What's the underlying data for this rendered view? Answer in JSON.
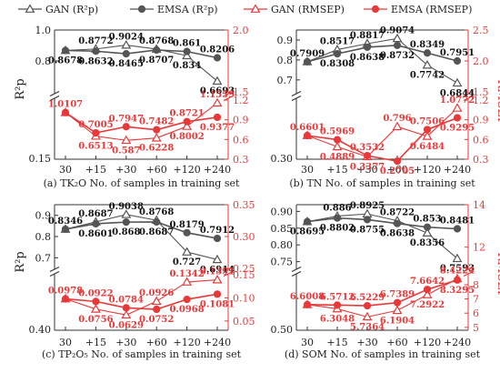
{
  "legend": {
    "items": [
      {
        "label": "GAN (R²p)",
        "color": "#555555",
        "marker": "triangle-open"
      },
      {
        "label": "EMSA (R²p)",
        "color": "#555555",
        "marker": "circle-filled"
      },
      {
        "label": "GAN (RMSEP)",
        "color": "#e8393a",
        "marker": "triangle-open"
      },
      {
        "label": "EMSA (RMSEP)",
        "color": "#e8393a",
        "marker": "circle-filled"
      }
    ]
  },
  "colors": {
    "r2": "#555555",
    "rmsep": "#e8393a",
    "axis_right": "#e8393a"
  },
  "chart_data": [
    {
      "type": "line",
      "caption": "(a) TK₂O No. of samples in training set",
      "x": [
        "30",
        "+15",
        "+30",
        "+60",
        "+120",
        "+240"
      ],
      "ylabel_left": "R²p",
      "ylabel_right": "",
      "left_upper_ticks": [
        "0.8",
        "1.0"
      ],
      "left_upper_range": [
        0.6,
        1.0
      ],
      "left_upper_tick_values": [
        0.8,
        1.0
      ],
      "left_lower_ticks": [
        "0.15"
      ],
      "right_ticks": [
        "0.3",
        "0.6",
        "0.9",
        "1.2",
        "1.5",
        "2.0"
      ],
      "right_lower_range": [
        0.3,
        1.2
      ],
      "right_upper_range": [
        1.5,
        2.0
      ],
      "series": [
        {
          "name": "GAN (R²p)",
          "kind": "r2",
          "marker": "triangle-open",
          "values": [
            0.8678,
            0.8772,
            0.9024,
            0.8768,
            0.834,
            0.6693
          ]
        },
        {
          "name": "EMSA (R²p)",
          "kind": "r2",
          "marker": "circle-filled",
          "values": [
            0.8678,
            0.8632,
            0.8465,
            0.8707,
            0.861,
            0.8206
          ]
        },
        {
          "name": "GAN (RMSEP)",
          "kind": "rmsep",
          "marker": "triangle-open",
          "values": [
            1.0107,
            0.6513,
            0.587,
            0.6228,
            0.8002,
            1.1559
          ]
        },
        {
          "name": "EMSA (RMSEP)",
          "kind": "rmsep",
          "marker": "circle-filled",
          "values": [
            1.0107,
            0.7005,
            0.7947,
            0.7482,
            0.8721,
            0.9377
          ]
        }
      ],
      "labels": [
        {
          "text": "0.8772",
          "i": 1,
          "s": 0,
          "pos": "above"
        },
        {
          "text": "0.9024",
          "i": 2,
          "s": 0,
          "pos": "above"
        },
        {
          "text": "0.8768",
          "i": 3,
          "s": 0,
          "pos": "above"
        },
        {
          "text": "0.861",
          "i": 4,
          "s": 1,
          "pos": "above"
        },
        {
          "text": "0.8206",
          "i": 5,
          "s": 1,
          "pos": "above"
        },
        {
          "text": "0.8678",
          "i": 0,
          "s": 1,
          "pos": "below"
        },
        {
          "text": "0.8632",
          "i": 1,
          "s": 1,
          "pos": "below"
        },
        {
          "text": "0.8465",
          "i": 2,
          "s": 1,
          "pos": "below"
        },
        {
          "text": "0.8707",
          "i": 3,
          "s": 1,
          "pos": "below"
        },
        {
          "text": "0.834",
          "i": 4,
          "s": 0,
          "pos": "below"
        },
        {
          "text": "0.6693",
          "i": 5,
          "s": 0,
          "pos": "below"
        },
        {
          "text": "1.0107",
          "i": 0,
          "s": 3,
          "pos": "above"
        },
        {
          "text": "0.7005",
          "i": 1,
          "s": 3,
          "pos": "above"
        },
        {
          "text": "0.7947",
          "i": 2,
          "s": 3,
          "pos": "above"
        },
        {
          "text": "0.7482",
          "i": 3,
          "s": 3,
          "pos": "above"
        },
        {
          "text": "0.8721",
          "i": 4,
          "s": 3,
          "pos": "above"
        },
        {
          "text": "1.1559",
          "i": 5,
          "s": 2,
          "pos": "above"
        },
        {
          "text": "0.6513",
          "i": 1,
          "s": 2,
          "pos": "below"
        },
        {
          "text": "0.587",
          "i": 2,
          "s": 2,
          "pos": "below"
        },
        {
          "text": "0.6228",
          "i": 3,
          "s": 2,
          "pos": "below"
        },
        {
          "text": "0.8002",
          "i": 4,
          "s": 2,
          "pos": "below"
        },
        {
          "text": "0.9377",
          "i": 5,
          "s": 3,
          "pos": "below"
        }
      ]
    },
    {
      "type": "line",
      "caption": "(b) TN No. of samples in training set",
      "x": [
        "30",
        "+15",
        "+30",
        "+60",
        "+120",
        "+240"
      ],
      "ylabel_left": "",
      "ylabel_right": "RMSEP",
      "left_upper_ticks": [
        "0.7",
        "0.8",
        "0.9"
      ],
      "left_upper_range": [
        0.64,
        0.95
      ],
      "left_upper_tick_values": [
        0.7,
        0.8,
        0.9
      ],
      "left_lower_ticks": [
        "0.30"
      ],
      "right_ticks": [
        "0.3",
        "0.6",
        "0.9",
        "1.2",
        "1.5",
        "2.0",
        "2.5"
      ],
      "right_lower_range": [
        0.3,
        1.2
      ],
      "right_upper_range": [
        1.5,
        2.5
      ],
      "series": [
        {
          "name": "GAN (R²p)",
          "kind": "r2",
          "marker": "triangle-open",
          "values": [
            0.7909,
            0.8517,
            0.8817,
            0.9074,
            0.7742,
            0.6844
          ]
        },
        {
          "name": "EMSA (R²p)",
          "kind": "r2",
          "marker": "circle-filled",
          "values": [
            0.7909,
            0.8308,
            0.8638,
            0.8732,
            0.8349,
            0.7951
          ]
        },
        {
          "name": "GAN (RMSEP)",
          "kind": "rmsep",
          "marker": "triangle-open",
          "values": [
            0.6601,
            0.4889,
            0.3377,
            0.796,
            0.6484,
            1.0772
          ]
        },
        {
          "name": "EMSA (RMSEP)",
          "kind": "rmsep",
          "marker": "circle-filled",
          "values": [
            0.6601,
            0.5969,
            0.3532,
            0.2705,
            0.7506,
            0.9295
          ]
        }
      ],
      "labels": [
        {
          "text": "0.7909",
          "i": 0,
          "s": 1,
          "pos": "above"
        },
        {
          "text": "0.8517",
          "i": 1,
          "s": 0,
          "pos": "above"
        },
        {
          "text": "0.8817",
          "i": 2,
          "s": 0,
          "pos": "above"
        },
        {
          "text": "0.9074",
          "i": 3,
          "s": 0,
          "pos": "above"
        },
        {
          "text": "0.8349",
          "i": 4,
          "s": 1,
          "pos": "above"
        },
        {
          "text": "0.7951",
          "i": 5,
          "s": 1,
          "pos": "above"
        },
        {
          "text": "0.8308",
          "i": 1,
          "s": 1,
          "pos": "below"
        },
        {
          "text": "0.8638",
          "i": 2,
          "s": 1,
          "pos": "below"
        },
        {
          "text": "0.8732",
          "i": 3,
          "s": 1,
          "pos": "below"
        },
        {
          "text": "0.7742",
          "i": 4,
          "s": 0,
          "pos": "below"
        },
        {
          "text": "0.6844",
          "i": 5,
          "s": 0,
          "pos": "below"
        },
        {
          "text": "0.6601",
          "i": 0,
          "s": 3,
          "pos": "above"
        },
        {
          "text": "0.5969",
          "i": 1,
          "s": 3,
          "pos": "above"
        },
        {
          "text": "0.3532",
          "i": 2,
          "s": 3,
          "pos": "above"
        },
        {
          "text": "0.796",
          "i": 3,
          "s": 2,
          "pos": "above"
        },
        {
          "text": "0.7506",
          "i": 4,
          "s": 3,
          "pos": "above"
        },
        {
          "text": "1.0772",
          "i": 5,
          "s": 2,
          "pos": "above"
        },
        {
          "text": "0.4889",
          "i": 1,
          "s": 2,
          "pos": "below"
        },
        {
          "text": "0.3377",
          "i": 2,
          "s": 2,
          "pos": "below"
        },
        {
          "text": "0.2705",
          "i": 3,
          "s": 3,
          "pos": "below"
        },
        {
          "text": "0.6484",
          "i": 4,
          "s": 2,
          "pos": "below"
        },
        {
          "text": "0.9295",
          "i": 5,
          "s": 3,
          "pos": "below"
        }
      ]
    },
    {
      "type": "line",
      "caption": "(c) TP₂O₅ No. of samples in training set",
      "x": [
        "30",
        "+15",
        "+30",
        "+60",
        "+120",
        "+240"
      ],
      "ylabel_left": "R²p",
      "ylabel_right": "",
      "left_upper_ticks": [
        "0.7",
        "0.8",
        "0.9"
      ],
      "left_upper_range": [
        0.65,
        0.95
      ],
      "left_upper_tick_values": [
        0.7,
        0.8,
        0.9
      ],
      "left_lower_ticks": [
        "0.40"
      ],
      "right_ticks": [
        "0.05",
        "0.10",
        "0.15",
        "0.25",
        "0.30",
        "0.35"
      ],
      "right_lower_range": [
        0.03,
        0.15
      ],
      "right_upper_range": [
        0.25,
        0.35
      ],
      "series": [
        {
          "name": "GAN (R²p)",
          "kind": "r2",
          "marker": "triangle-open",
          "values": [
            0.8346,
            0.8687,
            0.9038,
            0.8768,
            0.727,
            0.6914
          ]
        },
        {
          "name": "EMSA (R²p)",
          "kind": "r2",
          "marker": "circle-filled",
          "values": [
            0.8346,
            0.8601,
            0.868,
            0.8687,
            0.8179,
            0.7912
          ]
        },
        {
          "name": "GAN (RMSEP)",
          "kind": "rmsep",
          "marker": "triangle-open",
          "values": [
            0.0978,
            0.0756,
            0.0629,
            0.0926,
            0.1342,
            0.1391
          ]
        },
        {
          "name": "EMSA (RMSEP)",
          "kind": "rmsep",
          "marker": "circle-filled",
          "values": [
            0.0978,
            0.0922,
            0.0784,
            0.0752,
            0.0968,
            0.1081
          ]
        }
      ],
      "labels": [
        {
          "text": "0.8346",
          "i": 0,
          "s": 0,
          "pos": "above"
        },
        {
          "text": "0.8687",
          "i": 1,
          "s": 0,
          "pos": "above"
        },
        {
          "text": "0.9038",
          "i": 2,
          "s": 0,
          "pos": "above"
        },
        {
          "text": "0.8768",
          "i": 3,
          "s": 0,
          "pos": "above"
        },
        {
          "text": "0.8179",
          "i": 4,
          "s": 1,
          "pos": "above"
        },
        {
          "text": "0.7912",
          "i": 5,
          "s": 1,
          "pos": "above"
        },
        {
          "text": "0.8601",
          "i": 1,
          "s": 1,
          "pos": "below"
        },
        {
          "text": "0.868",
          "i": 2,
          "s": 1,
          "pos": "below"
        },
        {
          "text": "0.8687",
          "i": 3,
          "s": 1,
          "pos": "below"
        },
        {
          "text": "0.727",
          "i": 4,
          "s": 0,
          "pos": "below"
        },
        {
          "text": "0.6914",
          "i": 5,
          "s": 0,
          "pos": "below"
        },
        {
          "text": "0.0978",
          "i": 0,
          "s": 3,
          "pos": "above"
        },
        {
          "text": "0.0922",
          "i": 1,
          "s": 3,
          "pos": "above"
        },
        {
          "text": "0.0784",
          "i": 2,
          "s": 3,
          "pos": "above"
        },
        {
          "text": "0.0926",
          "i": 3,
          "s": 2,
          "pos": "above"
        },
        {
          "text": "0.1342",
          "i": 4,
          "s": 2,
          "pos": "above"
        },
        {
          "text": "0.1391",
          "i": 5,
          "s": 2,
          "pos": "above"
        },
        {
          "text": "0.0756",
          "i": 1,
          "s": 2,
          "pos": "below"
        },
        {
          "text": "0.0629",
          "i": 2,
          "s": 2,
          "pos": "below"
        },
        {
          "text": "0.0752",
          "i": 3,
          "s": 3,
          "pos": "below"
        },
        {
          "text": "0.0968",
          "i": 4,
          "s": 3,
          "pos": "below"
        },
        {
          "text": "0.1081",
          "i": 5,
          "s": 3,
          "pos": "below"
        }
      ]
    },
    {
      "type": "line",
      "caption": "(d) SOM No. of samples in training set",
      "x": [
        "30",
        "+15",
        "+30",
        "+60",
        "+120",
        "+240"
      ],
      "ylabel_left": "",
      "ylabel_right": "RMSEP",
      "left_upper_ticks": [
        "0.75",
        "0.80",
        "0.85",
        "0.90"
      ],
      "left_upper_range": [
        0.73,
        0.92
      ],
      "left_upper_tick_values": [
        0.75,
        0.8,
        0.85,
        0.9
      ],
      "left_lower_ticks": [
        "0.50"
      ],
      "right_ticks": [
        "5",
        "6",
        "7",
        "8",
        "12",
        "14"
      ],
      "right_lower_range": [
        4.8,
        8.7
      ],
      "right_upper_range": [
        11.0,
        14.0
      ],
      "series": [
        {
          "name": "GAN (R²p)",
          "kind": "r2",
          "marker": "triangle-open",
          "values": [
            0.8695,
            0.886,
            0.8925,
            0.8722,
            0.8356,
            0.7593
          ]
        },
        {
          "name": "EMSA (R²p)",
          "kind": "r2",
          "marker": "circle-filled",
          "values": [
            0.8695,
            0.8802,
            0.8755,
            0.8638,
            0.853,
            0.8481
          ]
        },
        {
          "name": "GAN (RMSEP)",
          "kind": "rmsep",
          "marker": "triangle-open",
          "values": [
            6.6008,
            6.3048,
            5.7364,
            6.1904,
            7.2922,
            8.4224
          ]
        },
        {
          "name": "EMSA (RMSEP)",
          "kind": "rmsep",
          "marker": "circle-filled",
          "values": [
            6.6008,
            6.5712,
            6.5229,
            6.7389,
            7.6642,
            8.3295
          ]
        }
      ],
      "labels": [
        {
          "text": "0.886",
          "i": 1,
          "s": 0,
          "pos": "above"
        },
        {
          "text": "0.8925",
          "i": 2,
          "s": 0,
          "pos": "above"
        },
        {
          "text": "0.8722",
          "i": 3,
          "s": 0,
          "pos": "above"
        },
        {
          "text": "0.853",
          "i": 4,
          "s": 1,
          "pos": "above"
        },
        {
          "text": "0.8481",
          "i": 5,
          "s": 1,
          "pos": "above"
        },
        {
          "text": "0.8695",
          "i": 0,
          "s": 1,
          "pos": "below"
        },
        {
          "text": "0.8802",
          "i": 1,
          "s": 1,
          "pos": "below"
        },
        {
          "text": "0.8755",
          "i": 2,
          "s": 1,
          "pos": "below"
        },
        {
          "text": "0.8638",
          "i": 3,
          "s": 1,
          "pos": "below"
        },
        {
          "text": "0.8356",
          "i": 4,
          "s": 0,
          "pos": "below"
        },
        {
          "text": "0.7593",
          "i": 5,
          "s": 0,
          "pos": "below"
        },
        {
          "text": "6.6008",
          "i": 0,
          "s": 3,
          "pos": "above"
        },
        {
          "text": "6.5712",
          "i": 1,
          "s": 3,
          "pos": "above"
        },
        {
          "text": "6.5229",
          "i": 2,
          "s": 3,
          "pos": "above"
        },
        {
          "text": "6.7389",
          "i": 3,
          "s": 3,
          "pos": "above"
        },
        {
          "text": "7.6642",
          "i": 4,
          "s": 3,
          "pos": "above"
        },
        {
          "text": "8.4224",
          "i": 5,
          "s": 2,
          "pos": "above"
        },
        {
          "text": "6.3048",
          "i": 1,
          "s": 2,
          "pos": "below"
        },
        {
          "text": "5.7364",
          "i": 2,
          "s": 2,
          "pos": "below"
        },
        {
          "text": "6.1904",
          "i": 3,
          "s": 2,
          "pos": "below"
        },
        {
          "text": "7.2922",
          "i": 4,
          "s": 2,
          "pos": "below"
        },
        {
          "text": "8.3295",
          "i": 5,
          "s": 3,
          "pos": "below"
        }
      ]
    }
  ]
}
